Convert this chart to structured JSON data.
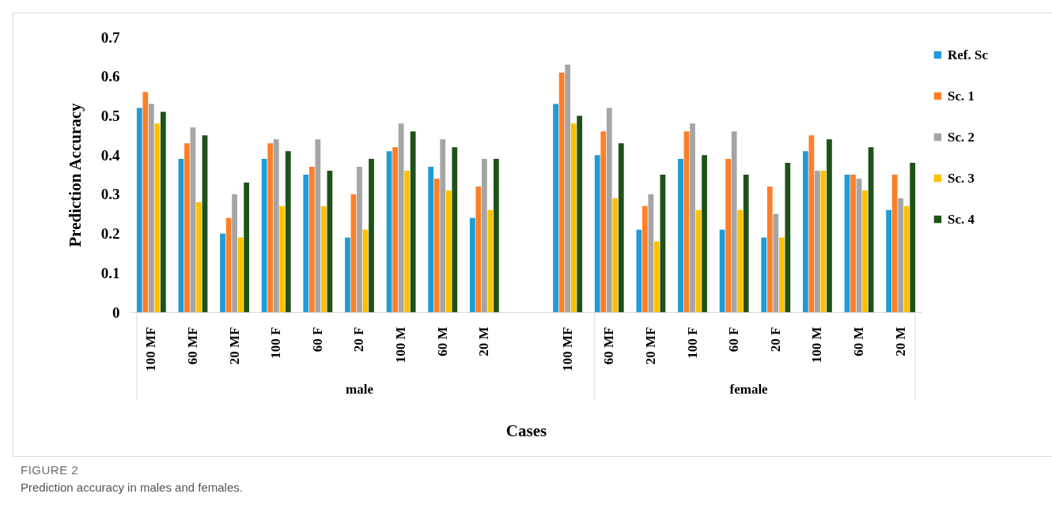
{
  "chart_data": {
    "type": "bar",
    "xlabel": "Cases",
    "ylabel": "Prediction Accuracy",
    "categories": [
      "100 MF",
      "60 MF",
      "20 MF",
      "100 F",
      "60 F",
      "20 F",
      "100 M",
      "60 M",
      "20 M",
      null,
      "100 MF",
      "60 MF",
      "20 MF",
      "100 F",
      "60 F",
      "20 F",
      "100 M",
      "60 M",
      "20 M"
    ],
    "series": [
      {
        "name": "Ref. Sc",
        "color": "#1f9bd7",
        "values": [
          0.52,
          0.39,
          0.2,
          0.39,
          0.35,
          0.19,
          0.41,
          0.37,
          0.24,
          null,
          0.53,
          0.4,
          0.21,
          0.39,
          0.21,
          0.19,
          0.41,
          0.35,
          0.26
        ]
      },
      {
        "name": "Sc. 1",
        "color": "#fe7f27",
        "values": [
          0.56,
          0.43,
          0.24,
          0.43,
          0.37,
          0.3,
          0.42,
          0.34,
          0.32,
          null,
          0.61,
          0.46,
          0.27,
          0.46,
          0.39,
          0.32,
          0.45,
          0.35,
          0.35
        ]
      },
      {
        "name": "Sc. 2",
        "color": "#a5a5a5",
        "values": [
          0.53,
          0.47,
          0.3,
          0.44,
          0.44,
          0.37,
          0.48,
          0.44,
          0.39,
          null,
          0.63,
          0.52,
          0.3,
          0.48,
          0.46,
          0.25,
          0.36,
          0.34,
          0.29
        ]
      },
      {
        "name": "Sc. 3",
        "color": "#ffc000",
        "values": [
          0.48,
          0.28,
          0.19,
          0.27,
          0.27,
          0.21,
          0.36,
          0.31,
          0.26,
          null,
          0.48,
          0.29,
          0.18,
          0.26,
          0.26,
          0.19,
          0.36,
          0.31,
          0.27
        ]
      },
      {
        "name": "Sc. 4",
        "color": "#1f5218",
        "values": [
          0.51,
          0.45,
          0.33,
          0.41,
          0.36,
          0.39,
          0.46,
          0.42,
          0.39,
          null,
          0.5,
          0.43,
          0.35,
          0.4,
          0.35,
          0.38,
          0.44,
          0.42,
          0.38
        ]
      }
    ],
    "ylim": [
      0,
      0.7
    ],
    "yticks": [
      0,
      0.1,
      0.2,
      0.3,
      0.4,
      0.5,
      0.6,
      0.7
    ],
    "grid": false,
    "legend": "right",
    "annotations": [
      "male",
      "female",
      "FIGURE 2",
      "Prediction accuracy in males and females."
    ]
  }
}
